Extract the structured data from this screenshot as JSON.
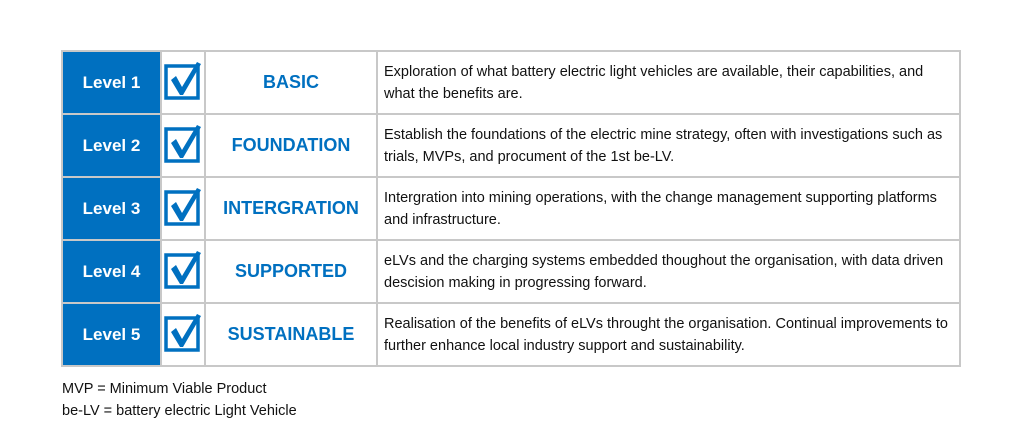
{
  "accent_color": "#0070C0",
  "levels": [
    {
      "level": "Level 1",
      "checked": true,
      "name": "BASIC",
      "description": "Exploration of what battery electric light vehicles are available, their capabilities, and what the benefits are."
    },
    {
      "level": "Level 2",
      "checked": true,
      "name": "FOUNDATION",
      "description": "Establish the foundations of the electric mine strategy, often with investigations such as trials, MVPs, and procument of the 1st be-LV."
    },
    {
      "level": "Level 3",
      "checked": true,
      "name": "INTERGRATION",
      "description": "Intergration into mining operations, with the change management supporting platforms and infrastructure."
    },
    {
      "level": "Level 4",
      "checked": true,
      "name": "SUPPORTED",
      "description": "eLVs and the charging systems embedded thoughout the organisation, with data driven descision making in progressing forward."
    },
    {
      "level": "Level 5",
      "checked": true,
      "name": "SUSTAINABLE",
      "description": "Realisation of the benefits of eLVs throught the organisation.  Continual improvements to further enhance local industry support and sustainability."
    }
  ],
  "notes": [
    "MVP = Minimum Viable Product",
    "be-LV = battery electric Light Vehicle"
  ]
}
